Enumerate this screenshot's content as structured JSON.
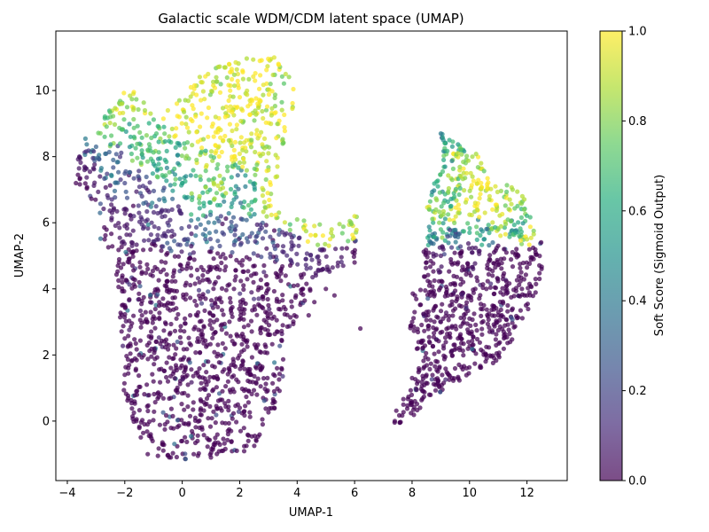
{
  "chart_data": {
    "type": "scatter",
    "title": "Galactic scale WDM/CDM latent space (UMAP)",
    "xlabel": "UMAP-1",
    "ylabel": "UMAP-2",
    "xlim": [
      -4.4,
      13.4
    ],
    "ylim": [
      -1.8,
      11.8
    ],
    "xticks": [
      -4,
      -2,
      0,
      2,
      4,
      6,
      8,
      10,
      12
    ],
    "yticks": [
      0,
      2,
      4,
      6,
      8,
      10
    ],
    "grid": false,
    "colorbar": {
      "label": "Soft Score (Sigmoid Output)",
      "range": [
        0.0,
        1.0
      ],
      "ticks": [
        0.0,
        0.2,
        0.4,
        0.6,
        0.8,
        1.0
      ],
      "colormap": "viridis",
      "alpha": 0.7
    },
    "clusters": [
      {
        "region": "left",
        "approx_points": 3400,
        "outline": [
          [
            -3.8,
            7.2
          ],
          [
            -3.6,
            8.3
          ],
          [
            -2.7,
            9.4
          ],
          [
            -2.2,
            9.9
          ],
          [
            -1.6,
            10.0
          ],
          [
            -1.0,
            9.2
          ],
          [
            -0.2,
            9.6
          ],
          [
            0.4,
            10.3
          ],
          [
            1.1,
            10.7
          ],
          [
            2.0,
            10.95
          ],
          [
            3.1,
            11.1
          ],
          [
            3.7,
            10.7
          ],
          [
            4.0,
            10.2
          ],
          [
            3.7,
            8.8
          ],
          [
            3.4,
            7.6
          ],
          [
            3.0,
            6.6
          ],
          [
            3.7,
            6.1
          ],
          [
            4.3,
            6.1
          ],
          [
            5.1,
            5.9
          ],
          [
            6.1,
            6.2
          ],
          [
            6.1,
            5.0
          ],
          [
            5.5,
            4.7
          ],
          [
            4.8,
            4.3
          ],
          [
            4.3,
            3.5
          ],
          [
            3.7,
            2.7
          ],
          [
            3.5,
            2.0
          ],
          [
            3.6,
            1.2
          ],
          [
            3.4,
            0.6
          ],
          [
            2.8,
            -0.2
          ],
          [
            2.5,
            -0.9
          ],
          [
            1.3,
            -1.1
          ],
          [
            0.5,
            -1.2
          ],
          [
            -0.5,
            -1.1
          ],
          [
            -1.1,
            -1.1
          ],
          [
            -1.6,
            -0.6
          ],
          [
            -1.8,
            0.2
          ],
          [
            -2.2,
            1.4
          ],
          [
            -2.1,
            2.6
          ],
          [
            -2.3,
            3.6
          ],
          [
            -2.3,
            4.5
          ],
          [
            -2.2,
            5.1
          ],
          [
            -2.8,
            5.3
          ],
          [
            -3.0,
            6.3
          ],
          [
            -3.3,
            6.9
          ]
        ],
        "points": [
          [
            -3.7,
            7.2,
            0.0
          ],
          [
            -3.4,
            7.6,
            0.05
          ],
          [
            -3.0,
            8.3,
            0.3
          ],
          [
            -2.7,
            8.6,
            0.7
          ],
          [
            -2.5,
            9.2,
            0.75
          ],
          [
            -2.1,
            9.6,
            0.9
          ],
          [
            -1.7,
            9.9,
            0.95
          ],
          [
            -1.3,
            9.4,
            0.85
          ],
          [
            -0.9,
            8.7,
            0.7
          ],
          [
            -0.5,
            9.4,
            0.95
          ],
          [
            -0.1,
            9.2,
            1.0
          ],
          [
            0.3,
            10.1,
            1.0
          ],
          [
            0.9,
            10.5,
            0.95
          ],
          [
            1.5,
            10.7,
            0.9
          ],
          [
            2.1,
            10.6,
            1.0
          ],
          [
            2.7,
            10.9,
            1.0
          ],
          [
            3.2,
            11.0,
            0.95
          ],
          [
            3.6,
            10.5,
            0.9
          ],
          [
            2.0,
            9.8,
            1.0
          ],
          [
            1.5,
            9.2,
            1.0
          ],
          [
            0.9,
            8.6,
            1.0
          ],
          [
            2.6,
            8.8,
            0.95
          ],
          [
            3.0,
            8.1,
            0.9
          ],
          [
            3.3,
            7.4,
            0.9
          ],
          [
            0.5,
            7.9,
            0.8
          ],
          [
            0.0,
            7.2,
            0.6
          ],
          [
            -0.6,
            7.9,
            0.6
          ],
          [
            -1.2,
            8.2,
            0.7
          ],
          [
            -1.8,
            8.6,
            0.6
          ],
          [
            -2.4,
            7.9,
            0.3
          ],
          [
            -2.0,
            7.2,
            0.2
          ],
          [
            -1.4,
            6.8,
            0.15
          ],
          [
            -0.8,
            6.7,
            0.3
          ],
          [
            0.6,
            6.6,
            0.7
          ],
          [
            1.2,
            6.9,
            0.75
          ],
          [
            1.8,
            6.7,
            0.5
          ],
          [
            2.4,
            6.4,
            0.6
          ],
          [
            3.0,
            6.5,
            0.9
          ],
          [
            4.0,
            6.1,
            0.8
          ],
          [
            4.6,
            5.9,
            0.95
          ],
          [
            5.2,
            5.8,
            0.9
          ],
          [
            6.0,
            6.2,
            0.95
          ],
          [
            -2.7,
            5.5,
            0.0
          ],
          [
            -2.0,
            5.9,
            0.05
          ],
          [
            -1.4,
            6.1,
            0.1
          ],
          [
            -0.6,
            6.2,
            0.1
          ],
          [
            0.1,
            5.5,
            0.2
          ],
          [
            0.8,
            5.8,
            0.3
          ],
          [
            1.4,
            5.7,
            0.2
          ],
          [
            2.1,
            6.1,
            0.3
          ],
          [
            2.6,
            5.6,
            0.2
          ],
          [
            3.2,
            5.3,
            0.15
          ],
          [
            3.8,
            5.2,
            0.1
          ],
          [
            4.3,
            4.9,
            0.1
          ],
          [
            4.9,
            4.6,
            0.05
          ],
          [
            5.6,
            4.7,
            0.05
          ],
          [
            -2.2,
            4.8,
            0.0
          ],
          [
            -1.7,
            4.3,
            0.0
          ],
          [
            -1.2,
            4.6,
            0.0
          ],
          [
            -0.6,
            4.1,
            0.0
          ],
          [
            0.0,
            4.6,
            0.0
          ],
          [
            0.6,
            4.2,
            0.0
          ],
          [
            1.2,
            4.6,
            0.0
          ],
          [
            1.8,
            4.0,
            0.0
          ],
          [
            2.4,
            4.4,
            0.0
          ],
          [
            3.0,
            4.0,
            0.0
          ],
          [
            3.6,
            4.4,
            0.0
          ],
          [
            4.2,
            4.0,
            0.0
          ],
          [
            4.6,
            3.6,
            0.0
          ],
          [
            -2.0,
            3.5,
            0.0
          ],
          [
            -1.4,
            3.2,
            0.0
          ],
          [
            -0.8,
            3.6,
            0.0
          ],
          [
            -0.2,
            3.1,
            0.0
          ],
          [
            0.5,
            3.5,
            0.0
          ],
          [
            1.1,
            3.0,
            0.0
          ],
          [
            1.7,
            3.4,
            0.0
          ],
          [
            2.3,
            2.9,
            0.0
          ],
          [
            2.9,
            3.3,
            0.0
          ],
          [
            3.5,
            2.9,
            0.0
          ],
          [
            3.9,
            3.2,
            0.0
          ],
          [
            -2.0,
            2.5,
            0.0
          ],
          [
            -1.5,
            2.0,
            0.0
          ],
          [
            -0.9,
            2.4,
            0.0
          ],
          [
            -0.3,
            1.9,
            0.0
          ],
          [
            0.3,
            2.3,
            0.0
          ],
          [
            0.9,
            1.8,
            0.0
          ],
          [
            1.5,
            2.2,
            0.0
          ],
          [
            2.1,
            1.7,
            0.0
          ],
          [
            2.7,
            2.1,
            0.0
          ],
          [
            3.3,
            1.6,
            0.0
          ],
          [
            -2.0,
            1.4,
            0.0
          ],
          [
            -1.6,
            0.9,
            0.0
          ],
          [
            -1.0,
            1.2,
            0.0
          ],
          [
            -0.4,
            0.7,
            0.0
          ],
          [
            0.2,
            1.1,
            0.0
          ],
          [
            0.8,
            0.5,
            0.0
          ],
          [
            1.4,
            0.9,
            0.0
          ],
          [
            2.0,
            0.4,
            0.0
          ],
          [
            2.6,
            0.8,
            0.0
          ],
          [
            3.2,
            0.9,
            0.0
          ],
          [
            -1.6,
            0.0,
            0.0
          ],
          [
            -1.1,
            -0.4,
            0.0
          ],
          [
            -0.6,
            -0.1,
            0.0
          ],
          [
            0.0,
            -0.6,
            0.0
          ],
          [
            0.6,
            -0.2,
            0.0
          ],
          [
            1.1,
            -0.7,
            0.0
          ],
          [
            1.7,
            -0.3,
            0.0
          ],
          [
            2.3,
            -0.6,
            0.0
          ],
          [
            2.8,
            -0.1,
            0.0
          ],
          [
            -1.2,
            -1.0,
            0.0
          ],
          [
            -0.4,
            -1.1,
            0.0
          ],
          [
            0.4,
            -1.0,
            0.0
          ],
          [
            1.0,
            -1.1,
            0.0
          ],
          [
            1.9,
            -0.9,
            0.0
          ],
          [
            6.0,
            4.8,
            0.0
          ],
          [
            5.0,
            4.0,
            0.0
          ],
          [
            4.4,
            3.2,
            0.0
          ],
          [
            6.2,
            2.8,
            0.0
          ],
          [
            5.3,
            3.8,
            0.0
          ]
        ]
      },
      {
        "region": "right",
        "approx_points": 1600,
        "outline": [
          [
            7.3,
            -0.2
          ],
          [
            7.5,
            0.6
          ],
          [
            8.1,
            1.3
          ],
          [
            8.2,
            2.1
          ],
          [
            7.9,
            2.9
          ],
          [
            7.9,
            3.7
          ],
          [
            8.4,
            4.4
          ],
          [
            8.4,
            5.3
          ],
          [
            8.6,
            5.9
          ],
          [
            8.5,
            6.6
          ],
          [
            8.8,
            7.3
          ],
          [
            9.1,
            7.6
          ],
          [
            8.9,
            8.4
          ],
          [
            8.9,
            8.9
          ],
          [
            9.4,
            8.5
          ],
          [
            9.9,
            8.2
          ],
          [
            10.5,
            8.0
          ],
          [
            10.8,
            7.2
          ],
          [
            11.3,
            7.2
          ],
          [
            11.9,
            6.8
          ],
          [
            12.3,
            5.8
          ],
          [
            12.6,
            5.2
          ],
          [
            12.5,
            4.3
          ],
          [
            12.2,
            3.6
          ],
          [
            11.8,
            3.0
          ],
          [
            11.4,
            2.3
          ],
          [
            10.8,
            1.7
          ],
          [
            10.0,
            1.4
          ],
          [
            9.3,
            1.0
          ],
          [
            8.5,
            0.6
          ],
          [
            8.0,
            0.1
          ],
          [
            7.5,
            -0.1
          ]
        ],
        "points": [
          [
            7.4,
            0.0,
            0.0
          ],
          [
            7.7,
            0.5,
            0.0
          ],
          [
            8.1,
            0.6,
            0.0
          ],
          [
            8.6,
            0.8,
            0.0
          ],
          [
            8.0,
            1.3,
            0.0
          ],
          [
            8.4,
            1.6,
            0.0
          ],
          [
            8.9,
            1.5,
            0.0
          ],
          [
            9.4,
            1.3,
            0.0
          ],
          [
            9.9,
            1.6,
            0.0
          ],
          [
            10.6,
            1.9,
            0.0
          ],
          [
            8.2,
            2.2,
            0.0
          ],
          [
            8.6,
            2.4,
            0.0
          ],
          [
            9.1,
            2.2,
            0.0
          ],
          [
            9.6,
            2.5,
            0.0
          ],
          [
            10.1,
            2.3,
            0.0
          ],
          [
            10.7,
            2.7,
            0.0
          ],
          [
            11.2,
            2.6,
            0.0
          ],
          [
            8.0,
            3.0,
            0.0
          ],
          [
            8.5,
            3.3,
            0.0
          ],
          [
            9.0,
            3.0,
            0.0
          ],
          [
            9.5,
            3.4,
            0.0
          ],
          [
            10.0,
            3.1,
            0.0
          ],
          [
            10.5,
            3.5,
            0.0
          ],
          [
            11.0,
            3.2,
            0.0
          ],
          [
            11.5,
            3.4,
            0.0
          ],
          [
            12.0,
            3.8,
            0.0
          ],
          [
            8.1,
            3.8,
            0.0
          ],
          [
            8.6,
            4.1,
            0.0
          ],
          [
            9.2,
            3.9,
            0.0
          ],
          [
            9.7,
            4.3,
            0.0
          ],
          [
            10.2,
            4.0,
            0.0
          ],
          [
            10.8,
            4.4,
            0.0
          ],
          [
            11.3,
            4.1,
            0.0
          ],
          [
            11.8,
            4.5,
            0.0
          ],
          [
            12.3,
            4.3,
            0.0
          ],
          [
            8.5,
            4.8,
            0.0
          ],
          [
            9.0,
            5.0,
            0.05
          ],
          [
            9.6,
            4.8,
            0.0
          ],
          [
            10.1,
            5.1,
            0.05
          ],
          [
            10.7,
            4.9,
            0.0
          ],
          [
            11.2,
            5.2,
            0.0
          ],
          [
            11.7,
            5.0,
            0.0
          ],
          [
            12.3,
            5.1,
            0.0
          ],
          [
            8.6,
            5.6,
            0.5
          ],
          [
            9.0,
            5.8,
            0.7
          ],
          [
            9.5,
            5.6,
            0.3
          ],
          [
            10.0,
            5.7,
            0.6
          ],
          [
            10.5,
            5.5,
            0.5
          ],
          [
            11.0,
            5.8,
            0.8
          ],
          [
            11.6,
            5.7,
            0.6
          ],
          [
            12.0,
            5.5,
            0.9
          ],
          [
            8.6,
            6.4,
            0.8
          ],
          [
            9.1,
            6.6,
            0.7
          ],
          [
            9.6,
            6.3,
            0.9
          ],
          [
            10.2,
            6.6,
            0.95
          ],
          [
            10.8,
            6.4,
            1.0
          ],
          [
            11.4,
            6.7,
            0.9
          ],
          [
            11.9,
            6.4,
            0.8
          ],
          [
            8.9,
            7.1,
            0.6
          ],
          [
            9.4,
            7.3,
            0.8
          ],
          [
            9.9,
            7.5,
            0.95
          ],
          [
            10.4,
            7.2,
            1.0
          ],
          [
            10.9,
            7.1,
            0.95
          ],
          [
            11.5,
            7.0,
            0.85
          ],
          [
            9.1,
            7.9,
            0.6
          ],
          [
            9.6,
            8.1,
            0.9
          ],
          [
            10.1,
            8.0,
            0.85
          ],
          [
            10.4,
            7.8,
            0.9
          ],
          [
            9.0,
            8.7,
            0.4
          ],
          [
            9.3,
            8.5,
            0.6
          ],
          [
            9.7,
            8.2,
            0.7
          ]
        ]
      }
    ]
  }
}
